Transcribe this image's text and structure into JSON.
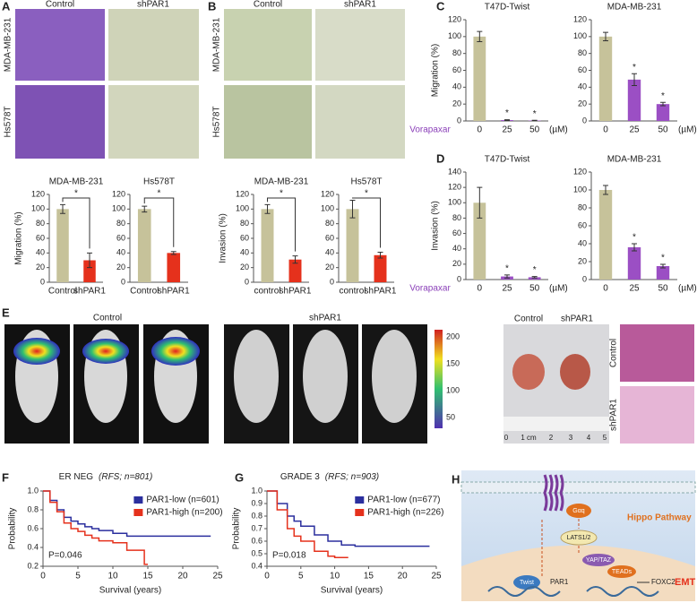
{
  "chart_data": [
    {
      "type": "bar",
      "title": "MDA-MB-231",
      "ylabel": "Migration (%)",
      "categories": [
        "Control",
        "shPAR1"
      ],
      "values": [
        100,
        30
      ],
      "errors": [
        6,
        10
      ],
      "colors": [
        "#c6c29a",
        "#e5311c"
      ],
      "ylim": [
        0,
        120
      ],
      "yticks": [
        0,
        20,
        40,
        60,
        80,
        100,
        120
      ],
      "significance": "*"
    },
    {
      "type": "bar",
      "title": "Hs578T",
      "categories": [
        "Control",
        "shPAR1"
      ],
      "values": [
        100,
        40
      ],
      "errors": [
        4,
        2
      ],
      "colors": [
        "#c6c29a",
        "#e5311c"
      ],
      "ylim": [
        0,
        120
      ],
      "yticks": [
        0,
        20,
        40,
        60,
        80,
        100,
        120
      ],
      "significance": "*"
    },
    {
      "type": "bar",
      "title": "MDA-MB-231",
      "ylabel": "Invasion (%)",
      "categories": [
        "control",
        "shPAR1"
      ],
      "values": [
        100,
        31
      ],
      "errors": [
        6,
        5
      ],
      "colors": [
        "#c6c29a",
        "#e5311c"
      ],
      "ylim": [
        0,
        120
      ],
      "yticks": [
        0,
        20,
        40,
        60,
        80,
        100,
        120
      ],
      "significance": "*"
    },
    {
      "type": "bar",
      "title": "Hs578T",
      "categories": [
        "control",
        "shPAR1"
      ],
      "values": [
        100,
        37
      ],
      "errors": [
        12,
        4
      ],
      "colors": [
        "#c6c29a",
        "#e5311c"
      ],
      "ylim": [
        0,
        120
      ],
      "yticks": [
        0,
        20,
        40,
        60,
        80,
        100,
        120
      ],
      "significance": "*"
    },
    {
      "type": "bar",
      "title": "T47D-Twist",
      "ylabel": "Migration (%)",
      "x_prefix": "Vorapaxar",
      "x_unit": "(µM)",
      "categories": [
        "0",
        "25",
        "50"
      ],
      "values": [
        100,
        1,
        0.5
      ],
      "errors": [
        6,
        0.5,
        0.3
      ],
      "colors": [
        "#c6c29a",
        "#9b4fc4",
        "#9b4fc4"
      ],
      "star_labels": [
        null,
        "*",
        "*"
      ],
      "ylim": [
        0,
        120
      ],
      "yticks": [
        0,
        20,
        40,
        60,
        80,
        100,
        120
      ]
    },
    {
      "type": "bar",
      "title": "MDA-MB-231",
      "x_unit": "(µM)",
      "categories": [
        "0",
        "25",
        "50"
      ],
      "values": [
        100,
        49,
        20
      ],
      "errors": [
        5,
        7,
        2
      ],
      "colors": [
        "#c6c29a",
        "#9b4fc4",
        "#9b4fc4"
      ],
      "star_labels": [
        null,
        "*",
        "*"
      ],
      "ylim": [
        0,
        120
      ],
      "yticks": [
        0,
        20,
        40,
        60,
        80,
        100,
        120
      ]
    },
    {
      "type": "bar",
      "title": "T47D-Twist",
      "ylabel": "Invasion (%)",
      "x_prefix": "Vorapaxar",
      "x_unit": "(µM)",
      "categories": [
        "0",
        "25",
        "50"
      ],
      "values": [
        100,
        4,
        3
      ],
      "errors": [
        20,
        2,
        1
      ],
      "colors": [
        "#c6c29a",
        "#9b4fc4",
        "#9b4fc4"
      ],
      "star_labels": [
        null,
        "*",
        "*"
      ],
      "ylim": [
        0,
        140
      ],
      "yticks": [
        0,
        20,
        40,
        60,
        80,
        100,
        120,
        140
      ]
    },
    {
      "type": "bar",
      "title": "MDA-MB-231",
      "x_unit": "(µM)",
      "categories": [
        "0",
        "25",
        "50"
      ],
      "values": [
        100,
        36,
        15
      ],
      "errors": [
        5,
        4,
        2
      ],
      "colors": [
        "#c6c29a",
        "#9b4fc4",
        "#9b4fc4"
      ],
      "star_labels": [
        null,
        "*",
        "*"
      ],
      "ylim": [
        0,
        120
      ],
      "yticks": [
        0,
        20,
        40,
        60,
        80,
        100,
        120
      ]
    },
    {
      "type": "line",
      "step": true,
      "title": "ER NEG",
      "subtitle": "(RFS; n=801)",
      "ylabel": "Probability",
      "xlabel": "Survival (years)",
      "legend": "upper right",
      "annotations": [
        "P=0.046"
      ],
      "xlim": [
        0,
        25
      ],
      "xticks": [
        0,
        5,
        10,
        15,
        20,
        25
      ],
      "ylim": [
        0.2,
        1.0
      ],
      "yticks": [
        0.2,
        0.4,
        0.6,
        0.8,
        {
          "value": 1.0,
          "label": "1.0"
        }
      ],
      "series": [
        {
          "name": "PAR1-low (n=601)",
          "color": "#2b2f9e",
          "x": [
            0,
            1,
            2,
            3,
            4,
            5,
            6,
            7,
            8,
            10,
            12,
            24
          ],
          "values": [
            1.0,
            0.9,
            0.8,
            0.72,
            0.68,
            0.65,
            0.62,
            0.6,
            0.58,
            0.55,
            0.52,
            0.52
          ]
        },
        {
          "name": "PAR1-high (n=200)",
          "color": "#e5311c",
          "x": [
            0,
            1,
            2,
            3,
            4,
            5,
            6,
            7,
            8,
            10,
            12,
            13.5,
            14.5,
            15
          ],
          "values": [
            1.0,
            0.88,
            0.78,
            0.66,
            0.6,
            0.57,
            0.53,
            0.5,
            0.47,
            0.45,
            0.37,
            0.37,
            0.22,
            0.22
          ]
        }
      ]
    },
    {
      "type": "line",
      "step": true,
      "title": "GRADE 3",
      "subtitle": "(RFS; n=903)",
      "ylabel": "Probability",
      "xlabel": "Survival (years)",
      "legend": "upper right",
      "annotations": [
        "P=0.018"
      ],
      "xlim": [
        0,
        25
      ],
      "xticks": [
        0,
        5,
        10,
        15,
        20,
        25
      ],
      "ylim": [
        0.4,
        1.0
      ],
      "yticks": [
        0.4,
        0.5,
        0.6,
        0.7,
        0.8,
        0.9,
        {
          "value": 1.0,
          "label": "1.0"
        }
      ],
      "series": [
        {
          "name": "PAR1-low (n=677)",
          "color": "#2b2f9e",
          "x": [
            0,
            1.5,
            3,
            4,
            5,
            7,
            9,
            11,
            13,
            24
          ],
          "values": [
            1.0,
            0.9,
            0.8,
            0.76,
            0.72,
            0.65,
            0.6,
            0.57,
            0.56,
            0.56
          ]
        },
        {
          "name": "PAR1-high (n=226)",
          "color": "#e5311c",
          "x": [
            0,
            1.5,
            3,
            4,
            5,
            7,
            9,
            10,
            12
          ],
          "values": [
            1.0,
            0.85,
            0.7,
            0.64,
            0.6,
            0.52,
            0.48,
            0.47,
            0.47
          ]
        }
      ]
    }
  ],
  "panels": {
    "A": {
      "letter": "A",
      "columns": [
        "Control",
        "shPAR1"
      ],
      "rows": [
        "MDA-MB-231",
        "Hs578T"
      ]
    },
    "B": {
      "letter": "B",
      "columns": [
        "Control",
        "shPAR1"
      ],
      "rows": [
        "MDA-MB-231",
        "Hs578T"
      ]
    },
    "C": {
      "letter": "C"
    },
    "D": {
      "letter": "D"
    },
    "E": {
      "letter": "E",
      "groups": [
        "Control",
        "shPAR1"
      ],
      "colorbar_ticks": [
        200,
        150,
        100,
        50
      ],
      "lung_labels": [
        "Control",
        "shPAR1"
      ],
      "ruler": [
        "0",
        "1 cm",
        "2",
        "3",
        "4",
        "5"
      ],
      "histology_labels": [
        "Control",
        "shPAR1"
      ]
    },
    "F": {
      "letter": "F"
    },
    "G": {
      "letter": "G"
    },
    "H": {
      "letter": "H",
      "g_protein": "Gαq",
      "hippo": "Hippo Pathway",
      "lats": "LATS1/2",
      "yap": "YAP/TAZ",
      "teads": "TEADs",
      "twist": "Twist",
      "par1": "PAR1",
      "foxc2": "FOXC2",
      "emt": "EMT"
    }
  }
}
